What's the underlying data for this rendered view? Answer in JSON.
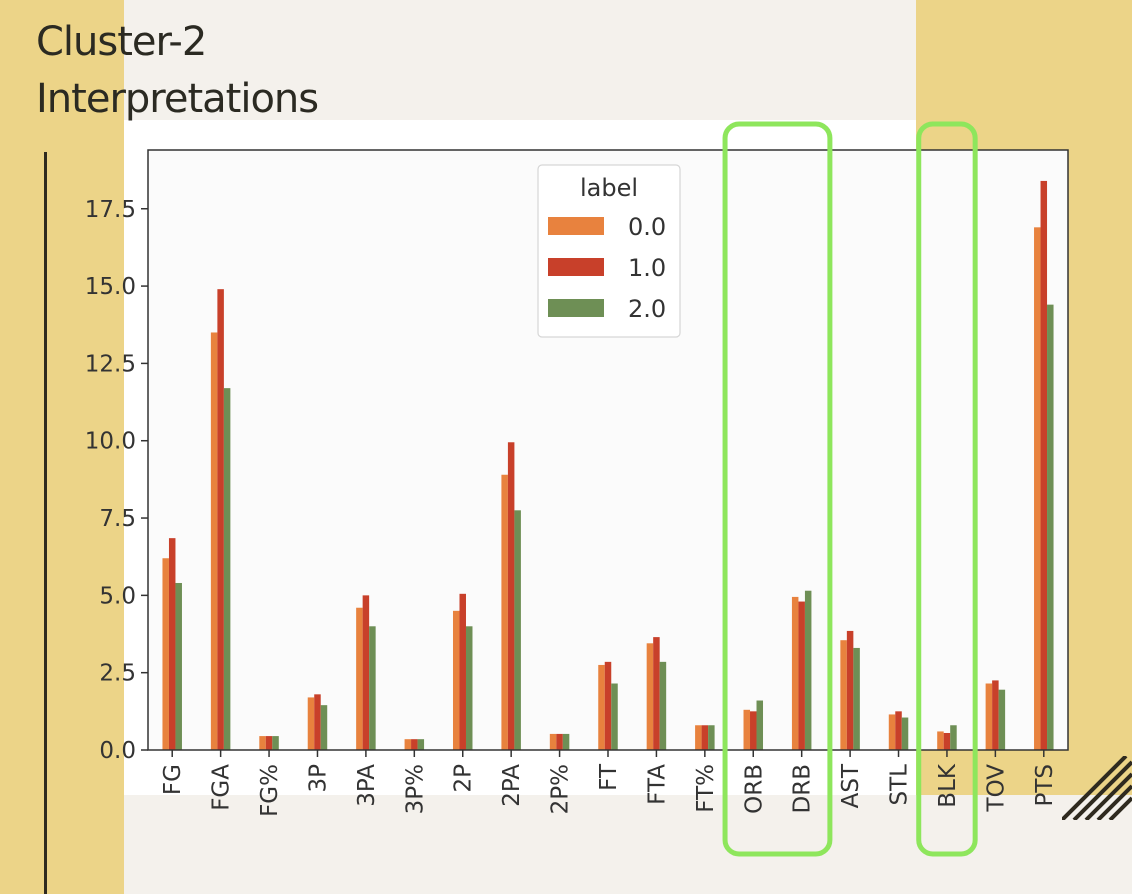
{
  "slide": {
    "title_lines": [
      "Cluster-2",
      "Interpretations"
    ],
    "colors": {
      "panel": "#ecd488",
      "accent_box": "#8ee65c",
      "rule": "#2f2a1f"
    }
  },
  "chart_data": {
    "type": "bar",
    "title": "",
    "xlabel": "",
    "ylabel": "",
    "categories": [
      "FG",
      "FGA",
      "FG%",
      "3P",
      "3PA",
      "3P%",
      "2P",
      "2PA",
      "2P%",
      "FT",
      "FTA",
      "FT%",
      "ORB",
      "DRB",
      "AST",
      "STL",
      "BLK",
      "TOV",
      "PTS"
    ],
    "legend": {
      "title": "label",
      "position": "top-center"
    },
    "series": [
      {
        "name": "0.0",
        "color": "#e8823e",
        "values": [
          6.2,
          13.5,
          0.45,
          1.7,
          4.6,
          0.35,
          4.5,
          8.9,
          0.52,
          2.75,
          3.45,
          0.8,
          1.3,
          4.95,
          3.55,
          1.15,
          0.6,
          2.15,
          16.9
        ]
      },
      {
        "name": "1.0",
        "color": "#c8402a",
        "values": [
          6.85,
          14.9,
          0.45,
          1.8,
          5.0,
          0.35,
          5.05,
          9.95,
          0.52,
          2.85,
          3.65,
          0.8,
          1.25,
          4.8,
          3.85,
          1.25,
          0.55,
          2.25,
          18.4
        ]
      },
      {
        "name": "2.0",
        "color": "#6e8f55",
        "values": [
          5.4,
          11.7,
          0.45,
          1.45,
          4.0,
          0.35,
          4.0,
          7.75,
          0.52,
          2.15,
          2.85,
          0.8,
          1.6,
          5.15,
          3.3,
          1.05,
          0.8,
          1.95,
          14.4
        ]
      }
    ],
    "ylim": [
      0,
      19.4
    ],
    "yticks": [
      "0.0",
      "2.5",
      "5.0",
      "7.5",
      "10.0",
      "12.5",
      "15.0",
      "17.5"
    ],
    "grid": false,
    "highlights": [
      [
        "ORB",
        "DRB"
      ],
      [
        "BLK"
      ]
    ]
  }
}
